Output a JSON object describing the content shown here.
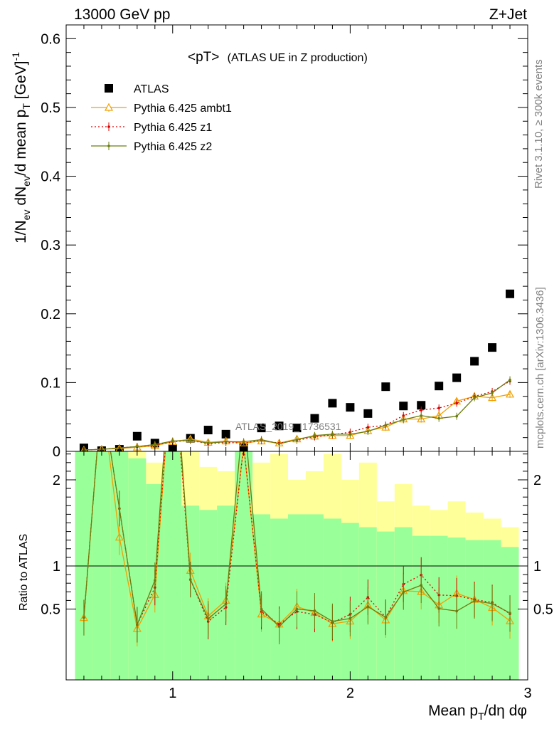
{
  "header": {
    "left": "13000 GeV pp",
    "right": "Z+Jet"
  },
  "side_labels": {
    "rivet": "Rivet 3.1.10, ≥ 300k events",
    "mcplots": "mcplots.cern.ch [arXiv:1306.3436]"
  },
  "watermark": "ATLAS_2019_I1736531",
  "chart_data": {
    "type": "scatter",
    "title": "<pT> (ATLAS UE in Z production)",
    "title_main": "<pT>",
    "title_sub": "(ATLAS UE in Z production)",
    "xlabel": "Mean p_T/dη dφ",
    "ylabel": "1/N_ev dN_ev/d mean p_T [GeV]^-1",
    "ratio_ylabel": "Ratio to ATLAS",
    "xlim": [
      0.4,
      3.0
    ],
    "ylim": [
      0,
      0.62
    ],
    "ratio_ylim": [
      0.33,
      2.33
    ],
    "x_ticks": [
      "1",
      "2",
      "3"
    ],
    "y_ticks": [
      "0",
      "0.1",
      "0.2",
      "0.3",
      "0.4",
      "0.5",
      "0.6"
    ],
    "ratio_ticks": [
      "0.5",
      "1",
      "2"
    ],
    "legend_position": "top-left",
    "x": [
      0.5,
      0.6,
      0.7,
      0.8,
      0.9,
      1.0,
      1.1,
      1.2,
      1.3,
      1.4,
      1.5,
      1.6,
      1.7,
      1.8,
      1.9,
      2.0,
      2.1,
      2.2,
      2.3,
      2.4,
      2.5,
      2.6,
      2.7,
      2.8,
      2.9
    ],
    "series": [
      {
        "name": "ATLAS",
        "style": "square",
        "color": "#000000",
        "values": [
          0.005,
          0.001,
          0.003,
          0.022,
          0.012,
          0.004,
          0.019,
          0.031,
          0.025,
          0.005,
          0.034,
          0.037,
          0.034,
          0.048,
          0.07,
          0.064,
          0.055,
          0.094,
          0.066,
          0.067,
          0.095,
          0.107,
          0.131,
          0.151,
          0.229
        ]
      },
      {
        "name": "Pythia 6.425 ambt1",
        "style": "triangle-solid",
        "color": "#f0a000",
        "values": [
          0.002,
          0.003,
          0.004,
          0.006,
          0.008,
          0.014,
          0.018,
          0.013,
          0.015,
          0.012,
          0.015,
          0.012,
          0.018,
          0.022,
          0.023,
          0.023,
          0.03,
          0.035,
          0.047,
          0.047,
          0.052,
          0.073,
          0.08,
          0.078,
          0.083
        ]
      },
      {
        "name": "Pythia 6.425 z1",
        "style": "dot-dotted",
        "color": "#dd0000",
        "values": [
          0.002,
          0.003,
          0.005,
          0.007,
          0.009,
          0.014,
          0.016,
          0.011,
          0.013,
          0.012,
          0.016,
          0.012,
          0.016,
          0.021,
          0.024,
          0.028,
          0.035,
          0.038,
          0.052,
          0.06,
          0.063,
          0.07,
          0.08,
          0.087,
          0.102
        ]
      },
      {
        "name": "Pythia 6.425 z2",
        "style": "dot-solid",
        "color": "#6b7d10",
        "values": [
          0.002,
          0.003,
          0.005,
          0.007,
          0.01,
          0.015,
          0.016,
          0.012,
          0.014,
          0.014,
          0.017,
          0.011,
          0.017,
          0.023,
          0.025,
          0.025,
          0.029,
          0.038,
          0.046,
          0.052,
          0.048,
          0.051,
          0.078,
          0.085,
          0.104
        ]
      }
    ],
    "ratio_band_outer": [
      2.33,
      2.33,
      2.33,
      2.33,
      2.2,
      2.33,
      2.33,
      2.15,
      2.1,
      2.2,
      2.2,
      2.3,
      2.0,
      2.1,
      2.3,
      2.0,
      2.2,
      1.75,
      1.95,
      1.7,
      1.65,
      1.75,
      1.62,
      1.55,
      1.45
    ],
    "ratio_band_inner": [
      2.33,
      2.33,
      2.33,
      2.25,
      1.95,
      2.33,
      1.7,
      1.65,
      1.7,
      2.33,
      1.6,
      1.55,
      1.6,
      1.6,
      1.55,
      1.5,
      1.45,
      1.4,
      1.45,
      1.35,
      1.35,
      1.33,
      1.3,
      1.3,
      1.22
    ]
  }
}
